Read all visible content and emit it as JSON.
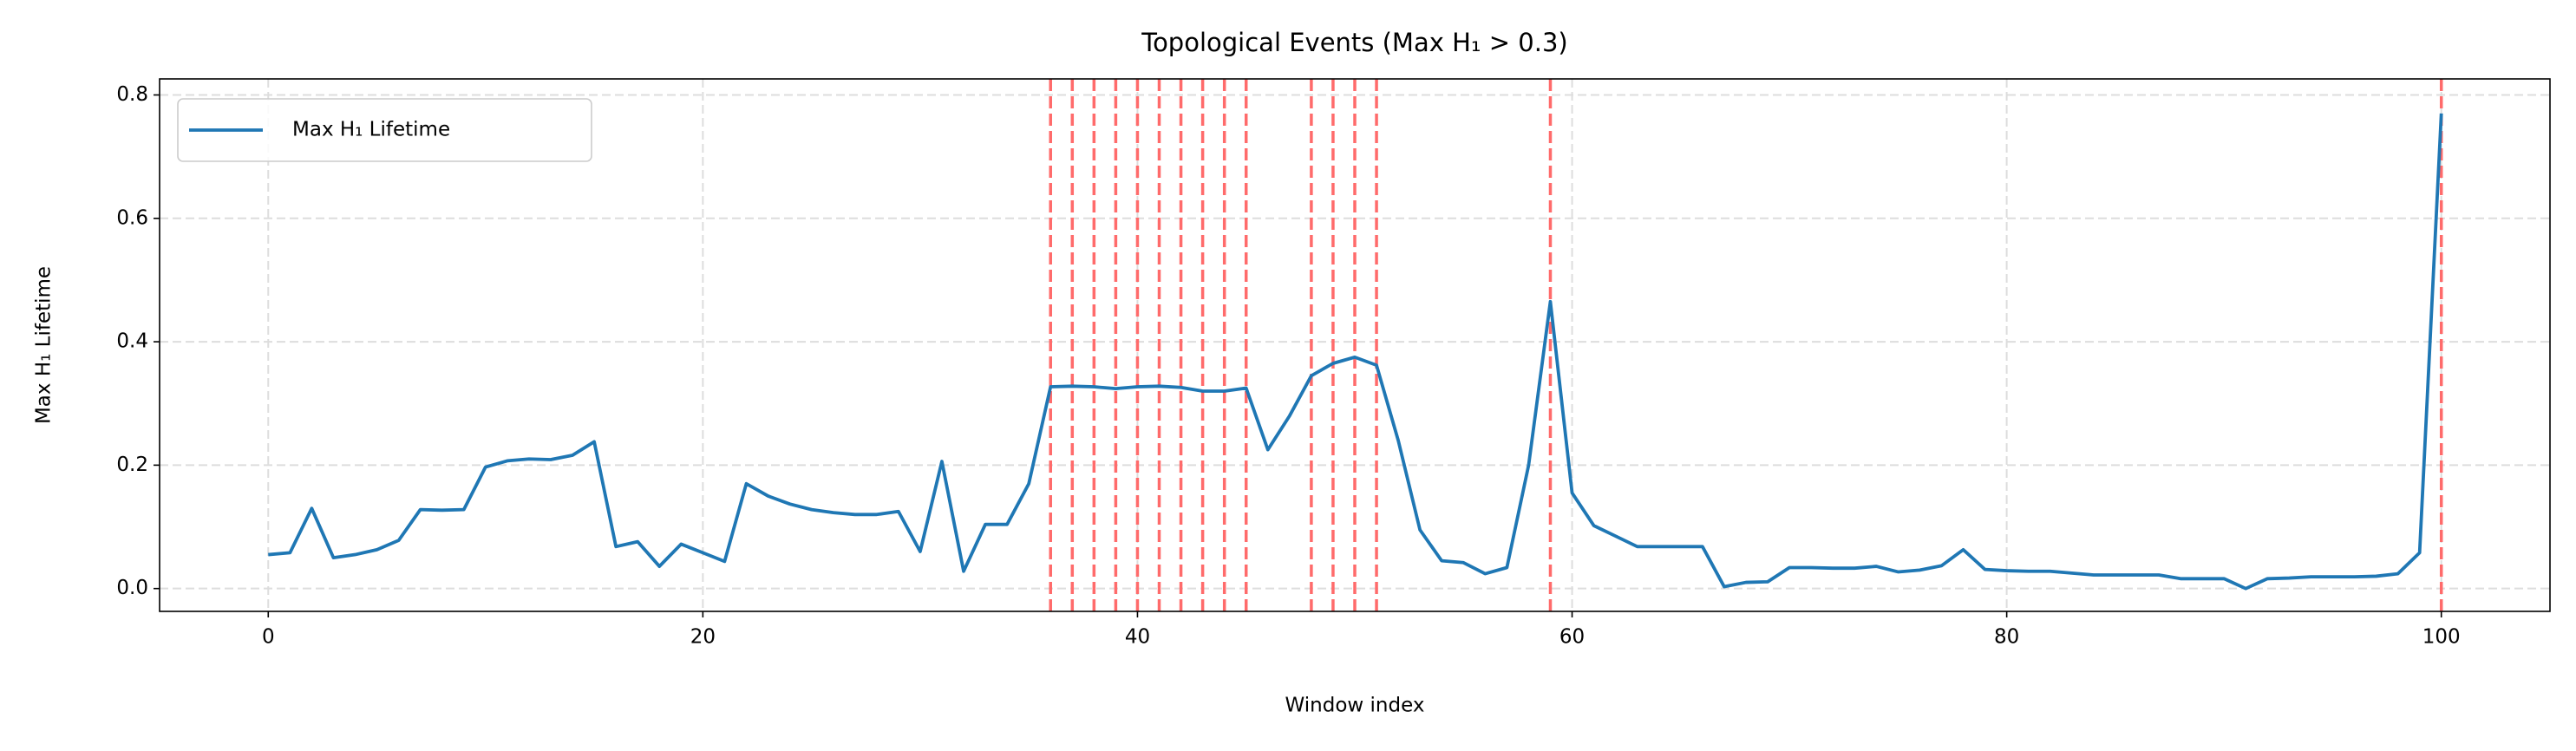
{
  "chart_data": {
    "type": "line",
    "title": "Topological Events (Max H₁ > 0.3)",
    "x_label": "Window index",
    "y_label": "Max H₁ Lifetime",
    "x": [
      0,
      1,
      2,
      3,
      4,
      5,
      6,
      7,
      8,
      9,
      10,
      11,
      12,
      13,
      14,
      15,
      16,
      17,
      18,
      19,
      20,
      21,
      22,
      23,
      24,
      25,
      26,
      27,
      28,
      29,
      30,
      31,
      32,
      33,
      34,
      35,
      36,
      37,
      38,
      39,
      40,
      41,
      42,
      43,
      44,
      45,
      46,
      47,
      48,
      49,
      50,
      51,
      52,
      53,
      54,
      55,
      56,
      57,
      58,
      59,
      60,
      61,
      62,
      63,
      64,
      65,
      66,
      67,
      68,
      69,
      70,
      71,
      72,
      73,
      74,
      75,
      76,
      77,
      78,
      79,
      80,
      81,
      82,
      83,
      84,
      85,
      86,
      87,
      88,
      89,
      90,
      91,
      92,
      93,
      94,
      95,
      96,
      97,
      98,
      99,
      100
    ],
    "series": [
      {
        "name": "Max H₁ Lifetime",
        "color": "#1f77b4",
        "values": [
          0.055,
          0.058,
          0.13,
          0.05,
          0.055,
          0.063,
          0.078,
          0.128,
          0.127,
          0.128,
          0.197,
          0.207,
          0.21,
          0.209,
          0.216,
          0.238,
          0.068,
          0.076,
          0.036,
          0.072,
          0.058,
          0.044,
          0.17,
          0.15,
          0.137,
          0.128,
          0.123,
          0.12,
          0.12,
          0.125,
          0.06,
          0.206,
          0.028,
          0.104,
          0.104,
          0.17,
          0.327,
          0.328,
          0.327,
          0.324,
          0.327,
          0.328,
          0.326,
          0.32,
          0.32,
          0.325,
          0.225,
          0.28,
          0.345,
          0.365,
          0.375,
          0.362,
          0.24,
          0.095,
          0.045,
          0.042,
          0.024,
          0.034,
          0.2,
          0.465,
          0.155,
          0.102,
          0.085,
          0.068,
          0.068,
          0.068,
          0.068,
          0.003,
          0.01,
          0.011,
          0.034,
          0.034,
          0.033,
          0.033,
          0.036,
          0.027,
          0.03,
          0.037,
          0.063,
          0.031,
          0.029,
          0.028,
          0.028,
          0.025,
          0.022,
          0.022,
          0.022,
          0.022,
          0.016,
          0.016,
          0.016,
          0,
          0.016,
          0.017,
          0.019,
          0.019,
          0.019,
          0.02,
          0.024,
          0.058,
          0.77
        ]
      }
    ],
    "events": [
      36,
      37,
      38,
      39,
      40,
      41,
      42,
      43,
      44,
      45,
      48,
      49,
      50,
      51,
      59,
      100
    ],
    "event_color": "#ff6b6b",
    "xlim": [
      -5,
      105
    ],
    "ylim": [
      -0.037,
      0.826
    ],
    "xticks": [
      0,
      20,
      40,
      60,
      80,
      100
    ],
    "yticks": [
      {
        "value": 0,
        "label": "0.0"
      },
      0.2,
      0.4,
      0.6,
      0.8
    ],
    "grid": true,
    "legend": "upper left"
  }
}
